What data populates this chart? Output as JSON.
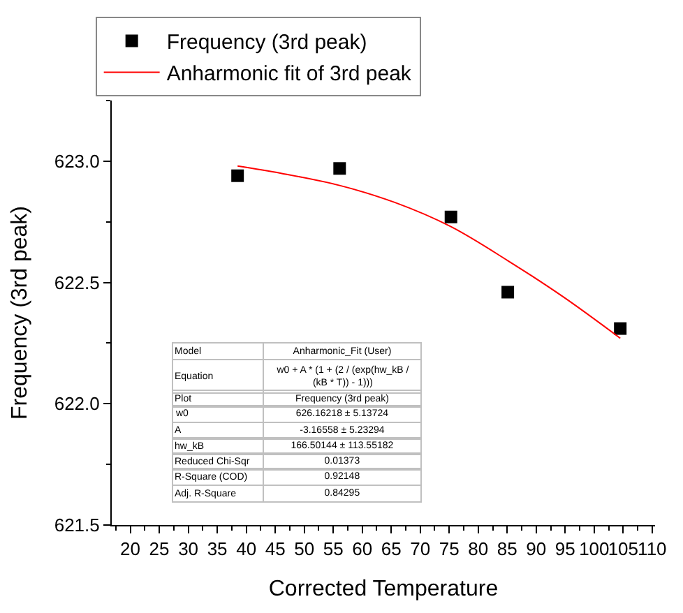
{
  "chart_data": {
    "type": "scatter",
    "xlabel": "Corrected Temperature",
    "ylabel": "Frequency (3rd peak)",
    "xlim": [
      16.8,
      110.5
    ],
    "ylim": [
      621.5,
      623.25
    ],
    "xticks": [
      20,
      25,
      30,
      35,
      40,
      45,
      50,
      55,
      60,
      65,
      70,
      75,
      80,
      85,
      90,
      95,
      100,
      105,
      110
    ],
    "yticks": [
      621.5,
      {
        "value": 622.0,
        "label": "622.0"
      },
      622.5,
      {
        "value": 623.0,
        "label": "623.0"
      }
    ],
    "legend": "top left",
    "series": [
      {
        "name": "Frequency (3rd peak)",
        "marker": "square",
        "color": "#000000",
        "x": [
          38.5,
          56.1,
          75.3,
          85.1,
          104.5
        ],
        "values": [
          622.94,
          622.97,
          622.77,
          622.46,
          622.31
        ]
      },
      {
        "name": "Anharmonic fit of 3rd peak",
        "type": "line",
        "marker": "none",
        "line_style": "solid",
        "color": "#ff0000",
        "x": [
          38.5,
          46,
          56.1,
          65.6,
          75.3,
          85.1,
          94.7,
          104.5
        ],
        "values": [
          622.98,
          622.95,
          622.9,
          622.83,
          622.73,
          622.59,
          622.44,
          622.27
        ]
      }
    ],
    "annotations": [
      "Model",
      "Anharmonic_Fit (User)",
      "Equation",
      "w0 + A * (1 + (2 / (exp(hw_kB / (kB * T)) - 1)))",
      "Plot",
      "Frequency (3rd peak)",
      "w0",
      "626.16218 ± 5.13724",
      "A",
      "-3.16558 ± 5.23294",
      "hw_kB",
      "166.50144 ± 113.55182",
      "Reduced Chi-Sqr",
      "0.01373",
      "R-Square (COD)",
      "0.92148",
      "Adj. R-Square",
      "0.84295"
    ]
  }
}
